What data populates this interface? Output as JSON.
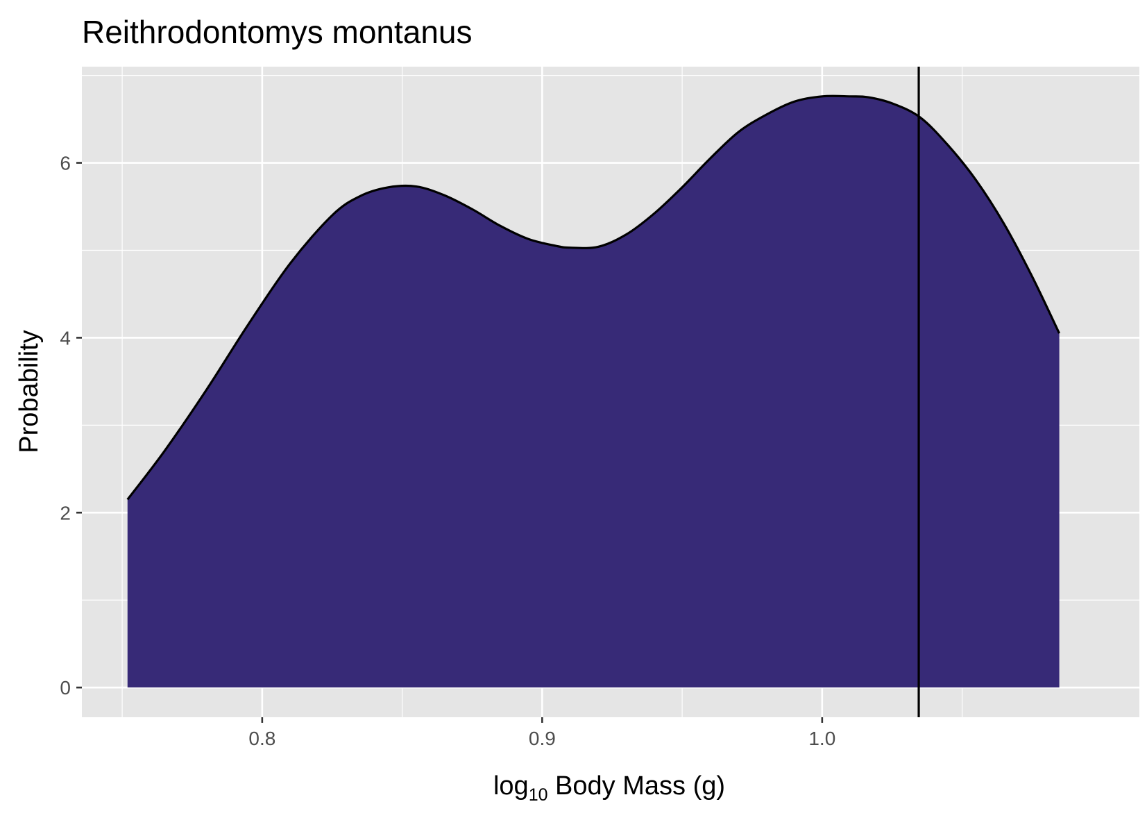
{
  "chart_data": {
    "type": "area",
    "title": "Reithrodontomys montanus",
    "xlabel": "log10 Body Mass (g)",
    "xlabel_parts": {
      "prefix": "log",
      "subscript": "10",
      "suffix": " Body Mass (g)"
    },
    "ylabel": "Probability",
    "xlim": [
      0.7356,
      1.1133
    ],
    "ylim": [
      -0.34,
      7.1
    ],
    "x_ticks": [
      0.8,
      0.9,
      1.0
    ],
    "x_tick_labels": [
      "0.8",
      "0.9",
      "1.0"
    ],
    "y_ticks": [
      0,
      2,
      4,
      6
    ],
    "y_tick_labels": [
      "0",
      "2",
      "4",
      "6"
    ],
    "grid": true,
    "legend": "none",
    "fill_color": "#372A77",
    "line_color": "#000000",
    "panel_color": "#E5E5E5",
    "grid_color": "#FFFFFF",
    "reference_line": {
      "x": 1.0345
    },
    "series": [
      {
        "name": "density",
        "x": [
          0.7519,
          0.765,
          0.78,
          0.795,
          0.81,
          0.825,
          0.835,
          0.845,
          0.855,
          0.865,
          0.875,
          0.885,
          0.895,
          0.905,
          0.91,
          0.92,
          0.93,
          0.94,
          0.95,
          0.96,
          0.97,
          0.98,
          0.99,
          1.0,
          1.01,
          1.0165,
          1.025,
          1.035,
          1.045,
          1.055,
          1.065,
          1.075,
          1.0847
        ],
        "y": [
          2.15,
          2.7,
          3.4,
          4.15,
          4.85,
          5.4,
          5.62,
          5.72,
          5.73,
          5.63,
          5.47,
          5.28,
          5.13,
          5.05,
          5.03,
          5.04,
          5.18,
          5.42,
          5.72,
          6.05,
          6.35,
          6.55,
          6.7,
          6.76,
          6.76,
          6.75,
          6.68,
          6.52,
          6.2,
          5.8,
          5.3,
          4.7,
          4.05
        ]
      }
    ]
  }
}
